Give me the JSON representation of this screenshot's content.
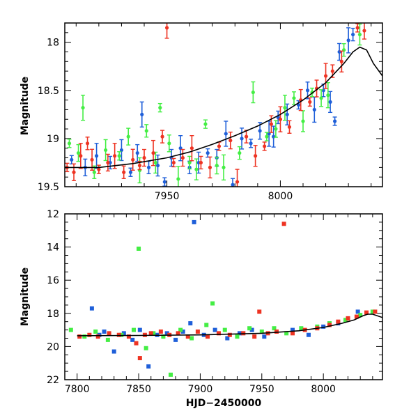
{
  "chart_data": [
    {
      "type": "scatter",
      "title": "",
      "xlabel": "",
      "ylabel": "Magnitude",
      "xlim": [
        7905,
        8045
      ],
      "ylim": [
        19.5,
        17.8
      ],
      "y_inverted": true,
      "xticks": [
        7950,
        8000
      ],
      "yticks": [
        18,
        18.5,
        19,
        19.5
      ],
      "grid": false,
      "colors": {
        "blue": "#1f5fd9",
        "green": "#44ee44",
        "red": "#ee3322",
        "model": "#000000"
      },
      "series": [
        {
          "color": "blue",
          "points": [
            [
              7908,
              19.22
            ],
            [
              7914,
              19.3
            ],
            [
              7919,
              19.18
            ],
            [
              7925,
              19.25
            ],
            [
              7930,
              19.12
            ],
            [
              7934,
              19.35
            ],
            [
              7937,
              19.15
            ],
            [
              7939,
              18.75
            ],
            [
              7942,
              19.3
            ],
            [
              7946,
              19.28
            ],
            [
              7949,
              19.45
            ],
            [
              7952,
              19.2
            ],
            [
              7956,
              19.1
            ],
            [
              7960,
              19.3
            ],
            [
              7964,
              19.25
            ],
            [
              7968,
              19.15
            ],
            [
              7972,
              19.2
            ],
            [
              7976,
              18.95
            ],
            [
              7979,
              19.48
            ],
            [
              7983,
              19.0
            ],
            [
              7987,
              19.05
            ],
            [
              7991,
              18.92
            ],
            [
              7995,
              18.95
            ],
            [
              7999,
              18.78
            ],
            [
              8003,
              18.75
            ],
            [
              8008,
              18.65
            ],
            [
              8012,
              18.5
            ],
            [
              8015,
              18.7
            ],
            [
              8019,
              18.5
            ],
            [
              8022,
              18.62
            ],
            [
              8024,
              18.82
            ],
            [
              8026,
              18.1
            ],
            [
              8030,
              17.98
            ],
            [
              8032,
              17.92
            ],
            [
              7997,
              18.98
            ]
          ]
        },
        {
          "color": "green",
          "points": [
            [
              7907,
              19.05
            ],
            [
              7911,
              19.15
            ],
            [
              7913,
              18.68
            ],
            [
              7918,
              19.35
            ],
            [
              7923,
              19.12
            ],
            [
              7929,
              19.18
            ],
            [
              7933,
              18.98
            ],
            [
              7938,
              19.33
            ],
            [
              7941,
              18.92
            ],
            [
              7945,
              19.25
            ],
            [
              7947,
              18.68
            ],
            [
              7951,
              19.05
            ],
            [
              7955,
              19.42
            ],
            [
              7960,
              19.25
            ],
            [
              7963,
              19.32
            ],
            [
              7967,
              18.85
            ],
            [
              7972,
              19.28
            ],
            [
              7975,
              19.3
            ],
            [
              7982,
              19.15
            ],
            [
              7988,
              18.52
            ],
            [
              7994,
              18.98
            ],
            [
              7998,
              18.9
            ],
            [
              8002,
              18.68
            ],
            [
              8006,
              18.58
            ],
            [
              8010,
              18.82
            ],
            [
              8014,
              18.52
            ],
            [
              8018,
              18.58
            ],
            [
              8021,
              18.55
            ],
            [
              8028,
              18.08
            ],
            [
              8035,
              17.92
            ]
          ]
        },
        {
          "color": "red",
          "points": [
            [
              7906,
              19.3
            ],
            [
              7909,
              19.35
            ],
            [
              7912,
              19.18
            ],
            [
              7915,
              19.05
            ],
            [
              7917,
              19.22
            ],
            [
              7920,
              19.32
            ],
            [
              7924,
              19.25
            ],
            [
              7927,
              19.18
            ],
            [
              7931,
              19.35
            ],
            [
              7935,
              19.22
            ],
            [
              7938,
              19.28
            ],
            [
              7940,
              19.2
            ],
            [
              7944,
              19.15
            ],
            [
              7948,
              18.98
            ],
            [
              7950,
              17.85
            ],
            [
              7953,
              19.25
            ],
            [
              7957,
              19.2
            ],
            [
              7961,
              19.1
            ],
            [
              7965,
              19.25
            ],
            [
              7969,
              19.3
            ],
            [
              7973,
              19.08
            ],
            [
              7978,
              19.02
            ],
            [
              7981,
              19.45
            ],
            [
              7985,
              18.98
            ],
            [
              7989,
              19.18
            ],
            [
              7993,
              19.08
            ],
            [
              7996,
              18.85
            ],
            [
              8000,
              18.8
            ],
            [
              8004,
              18.88
            ],
            [
              8009,
              18.6
            ],
            [
              8013,
              18.62
            ],
            [
              8016,
              18.48
            ],
            [
              8020,
              18.35
            ],
            [
              8023,
              18.3
            ],
            [
              8027,
              18.2
            ],
            [
              8034,
              17.85
            ],
            [
              8037,
              17.88
            ]
          ]
        }
      ],
      "model_curve": [
        [
          7905,
          19.3
        ],
        [
          7920,
          19.3
        ],
        [
          7935,
          19.26
        ],
        [
          7950,
          19.2
        ],
        [
          7960,
          19.14
        ],
        [
          7970,
          19.06
        ],
        [
          7980,
          18.97
        ],
        [
          7990,
          18.87
        ],
        [
          8000,
          18.75
        ],
        [
          8010,
          18.6
        ],
        [
          8020,
          18.42
        ],
        [
          8028,
          18.22
        ],
        [
          8032,
          18.1
        ],
        [
          8035,
          18.05
        ],
        [
          8038,
          18.08
        ],
        [
          8041,
          18.22
        ],
        [
          8045,
          18.35
        ]
      ]
    },
    {
      "type": "scatter",
      "title": "",
      "xlabel": "HJD−2450000",
      "ylabel": "Magnitude",
      "xlim": [
        7790,
        8048
      ],
      "ylim": [
        22,
        12
      ],
      "y_inverted": true,
      "xticks": [
        7800,
        7850,
        7900,
        7950,
        8000
      ],
      "yticks": [
        12,
        14,
        16,
        18,
        20,
        22
      ],
      "grid": false,
      "colors": {
        "blue": "#1f5fd9",
        "green": "#44ee44",
        "red": "#ee3322",
        "model": "#000000"
      },
      "series": [
        {
          "color": "blue",
          "points": [
            [
              7812,
              17.7
            ],
            [
              7818,
              19.3
            ],
            [
              7822,
              19.1
            ],
            [
              7830,
              20.3
            ],
            [
              7838,
              19.2
            ],
            [
              7845,
              19.6
            ],
            [
              7851,
              19.0
            ],
            [
              7858,
              21.2
            ],
            [
              7865,
              19.3
            ],
            [
              7873,
              19.2
            ],
            [
              7880,
              19.6
            ],
            [
              7886,
              19.1
            ],
            [
              7892,
              18.6
            ],
            [
              7895,
              12.5
            ],
            [
              7903,
              19.3
            ],
            [
              7912,
              19.0
            ],
            [
              7922,
              19.5
            ],
            [
              7932,
              19.2
            ],
            [
              7942,
              19.0
            ],
            [
              7952,
              19.4
            ],
            [
              7962,
              19.1
            ],
            [
              7975,
              19.0
            ],
            [
              7988,
              19.3
            ],
            [
              8000,
              18.8
            ],
            [
              8012,
              18.6
            ],
            [
              8020,
              18.3
            ],
            [
              8028,
              17.9
            ]
          ]
        },
        {
          "color": "green",
          "points": [
            [
              7795,
              19.0
            ],
            [
              7806,
              19.4
            ],
            [
              7815,
              19.1
            ],
            [
              7825,
              19.6
            ],
            [
              7836,
              19.3
            ],
            [
              7846,
              19.0
            ],
            [
              7850,
              14.1
            ],
            [
              7856,
              20.1
            ],
            [
              7862,
              19.2
            ],
            [
              7870,
              19.4
            ],
            [
              7876,
              21.7
            ],
            [
              7884,
              19.0
            ],
            [
              7893,
              19.5
            ],
            [
              7905,
              18.7
            ],
            [
              7910,
              17.4
            ],
            [
              7920,
              19.0
            ],
            [
              7930,
              19.4
            ],
            [
              7940,
              18.9
            ],
            [
              7950,
              19.1
            ],
            [
              7960,
              18.9
            ],
            [
              7970,
              19.2
            ],
            [
              7982,
              18.9
            ],
            [
              7995,
              18.8
            ],
            [
              8005,
              18.6
            ],
            [
              8018,
              18.4
            ],
            [
              8030,
              18.1
            ],
            [
              8040,
              17.9
            ]
          ]
        },
        {
          "color": "red",
          "points": [
            [
              7802,
              19.4
            ],
            [
              7810,
              19.3
            ],
            [
              7817,
              19.4
            ],
            [
              7826,
              19.2
            ],
            [
              7834,
              19.3
            ],
            [
              7842,
              19.4
            ],
            [
              7848,
              19.8
            ],
            [
              7851,
              20.7
            ],
            [
              7855,
              19.3
            ],
            [
              7860,
              19.2
            ],
            [
              7868,
              19.1
            ],
            [
              7875,
              19.3
            ],
            [
              7882,
              19.2
            ],
            [
              7890,
              19.4
            ],
            [
              7898,
              19.1
            ],
            [
              7906,
              19.4
            ],
            [
              7915,
              19.2
            ],
            [
              7924,
              19.3
            ],
            [
              7935,
              19.2
            ],
            [
              7944,
              19.4
            ],
            [
              7948,
              17.9
            ],
            [
              7955,
              19.2
            ],
            [
              7962,
              19.1
            ],
            [
              7968,
              12.6
            ],
            [
              7975,
              19.2
            ],
            [
              7985,
              19.0
            ],
            [
              7995,
              18.9
            ],
            [
              8005,
              18.7
            ],
            [
              8012,
              18.5
            ],
            [
              8020,
              18.3
            ],
            [
              8027,
              18.2
            ],
            [
              8035,
              17.95
            ],
            [
              8042,
              17.9
            ]
          ]
        }
      ],
      "model_curve": [
        [
          7800,
          19.35
        ],
        [
          7850,
          19.33
        ],
        [
          7900,
          19.3
        ],
        [
          7950,
          19.2
        ],
        [
          7980,
          19.05
        ],
        [
          8000,
          18.85
        ],
        [
          8015,
          18.6
        ],
        [
          8025,
          18.4
        ],
        [
          8032,
          18.15
        ],
        [
          8036,
          18.05
        ],
        [
          8040,
          18.05
        ],
        [
          8044,
          18.15
        ],
        [
          8048,
          18.25
        ]
      ]
    }
  ],
  "panel_labels": {
    "top_ylabel": "Magnitude",
    "bottom_ylabel": "Magnitude",
    "bottom_xlabel": "HJD−2450000"
  }
}
